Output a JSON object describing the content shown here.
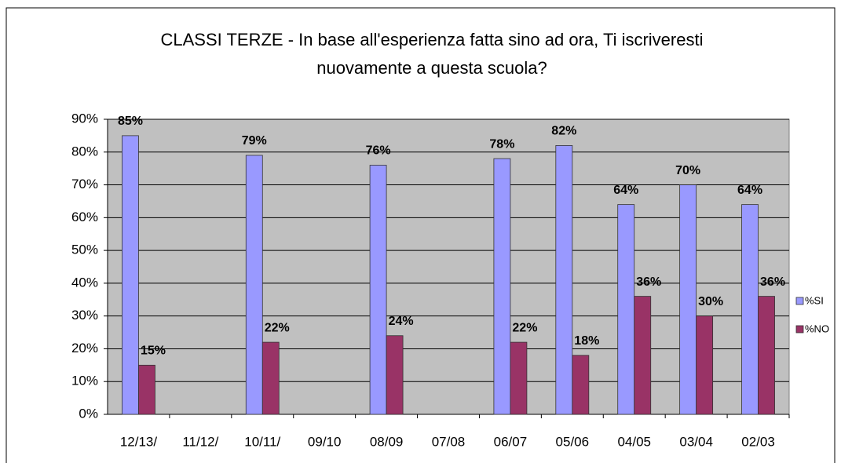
{
  "chart_data": {
    "type": "bar",
    "title": [
      "CLASSI TERZE - In base all'esperienza fatta sino ad ora, Ti iscriveresti",
      "nuovamente a questa scuola?"
    ],
    "categories": [
      "12/13/",
      "11/12/",
      "10/11/",
      "09/10",
      "08/09",
      "07/08",
      "06/07",
      "05/06",
      "04/05",
      "03/04",
      "02/03"
    ],
    "series": [
      {
        "name": "%SI",
        "color": "#9999ff",
        "values": [
          85,
          null,
          79,
          null,
          76,
          null,
          78,
          82,
          64,
          70,
          64
        ],
        "value_labels": [
          "85%",
          null,
          "79%",
          null,
          "76%",
          null,
          "78%",
          "82%",
          "64%",
          "70%",
          "64%"
        ]
      },
      {
        "name": "%NO",
        "color": "#993366",
        "values": [
          15,
          null,
          22,
          null,
          24,
          null,
          22,
          18,
          36,
          30,
          36
        ],
        "value_labels": [
          "15%",
          null,
          "22%",
          null,
          "24%",
          null,
          "22%",
          "18%",
          "36%",
          "30%",
          "36%"
        ]
      }
    ],
    "ylim": [
      0,
      90
    ],
    "yticks": [
      {
        "value": 0,
        "label": "0%"
      },
      {
        "value": 10,
        "label": "10%"
      },
      {
        "value": 20,
        "label": "20%"
      },
      {
        "value": 30,
        "label": "30%"
      },
      {
        "value": 40,
        "label": "40%"
      },
      {
        "value": 50,
        "label": "50%"
      },
      {
        "value": 60,
        "label": "60%"
      },
      {
        "value": 70,
        "label": "70%"
      },
      {
        "value": 80,
        "label": "80%"
      },
      {
        "value": 90,
        "label": "90%"
      }
    ],
    "grid": true,
    "legend": "right"
  }
}
